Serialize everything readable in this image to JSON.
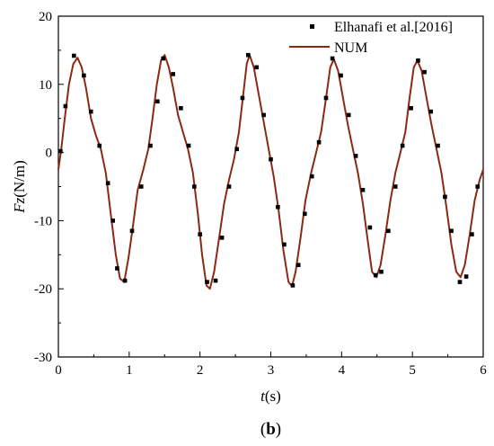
{
  "chart_data": {
    "type": "line",
    "xlabel": {
      "italic": "t",
      "rest": "(s)"
    },
    "ylabel": {
      "italic": "Fz",
      "rest": "(N/m)"
    },
    "xlim": [
      0,
      6
    ],
    "ylim": [
      -30,
      20
    ],
    "x_ticks": [
      0,
      1,
      2,
      3,
      4,
      5,
      6
    ],
    "y_ticks": [
      -30,
      -20,
      -10,
      0,
      10,
      20
    ],
    "grid": false,
    "legend": "top-right",
    "panel_label": {
      "open": "(",
      "bold": "b",
      "close": ")"
    },
    "colors": {
      "num": "#8b2a14",
      "experiment": "#000000",
      "axes": "#000000"
    },
    "series": [
      {
        "name": "Elhanafi et al.[2016]",
        "kind": "scatter",
        "points": [
          [
            0.03,
            0.2
          ],
          [
            0.1,
            6.8
          ],
          [
            0.22,
            14.2
          ],
          [
            0.36,
            11.3
          ],
          [
            0.46,
            6.0
          ],
          [
            0.58,
            1.0
          ],
          [
            0.7,
            -4.5
          ],
          [
            0.77,
            -10.0
          ],
          [
            0.83,
            -17.0
          ],
          [
            0.94,
            -18.8
          ],
          [
            1.04,
            -11.5
          ],
          [
            1.17,
            -5.0
          ],
          [
            1.3,
            1.0
          ],
          [
            1.4,
            7.5
          ],
          [
            1.48,
            13.8
          ],
          [
            1.62,
            11.5
          ],
          [
            1.73,
            6.5
          ],
          [
            1.84,
            1.0
          ],
          [
            1.92,
            -5.0
          ],
          [
            2.0,
            -12.0
          ],
          [
            2.1,
            -19.0
          ],
          [
            2.22,
            -18.8
          ],
          [
            2.31,
            -12.5
          ],
          [
            2.41,
            -5.0
          ],
          [
            2.52,
            0.5
          ],
          [
            2.6,
            8.0
          ],
          [
            2.68,
            14.3
          ],
          [
            2.8,
            12.5
          ],
          [
            2.9,
            5.5
          ],
          [
            3.0,
            -1.0
          ],
          [
            3.1,
            -8.0
          ],
          [
            3.19,
            -13.5
          ],
          [
            3.31,
            -19.5
          ],
          [
            3.39,
            -16.5
          ],
          [
            3.48,
            -9.0
          ],
          [
            3.58,
            -3.5
          ],
          [
            3.68,
            1.5
          ],
          [
            3.78,
            8.0
          ],
          [
            3.87,
            13.8
          ],
          [
            3.99,
            11.3
          ],
          [
            4.1,
            5.5
          ],
          [
            4.2,
            -0.5
          ],
          [
            4.3,
            -5.5
          ],
          [
            4.4,
            -11.0
          ],
          [
            4.48,
            -18.0
          ],
          [
            4.56,
            -17.5
          ],
          [
            4.66,
            -11.5
          ],
          [
            4.76,
            -5.0
          ],
          [
            4.86,
            1.0
          ],
          [
            4.98,
            6.5
          ],
          [
            5.08,
            13.5
          ],
          [
            5.17,
            11.8
          ],
          [
            5.26,
            6.0
          ],
          [
            5.36,
            1.0
          ],
          [
            5.46,
            -6.5
          ],
          [
            5.55,
            -11.5
          ],
          [
            5.67,
            -19.0
          ],
          [
            5.76,
            -18.2
          ],
          [
            5.84,
            -12.0
          ],
          [
            5.92,
            -5.0
          ]
        ]
      },
      {
        "name": "NUM",
        "kind": "line",
        "points": [
          [
            0.0,
            -2.5
          ],
          [
            0.04,
            0.5
          ],
          [
            0.09,
            5.0
          ],
          [
            0.15,
            10.0
          ],
          [
            0.21,
            13.0
          ],
          [
            0.27,
            13.9
          ],
          [
            0.33,
            12.5
          ],
          [
            0.39,
            9.5
          ],
          [
            0.46,
            5.0
          ],
          [
            0.53,
            2.5
          ],
          [
            0.6,
            0.5
          ],
          [
            0.67,
            -3.0
          ],
          [
            0.74,
            -9.0
          ],
          [
            0.81,
            -15.0
          ],
          [
            0.87,
            -18.5
          ],
          [
            0.93,
            -19.0
          ],
          [
            0.99,
            -15.5
          ],
          [
            1.05,
            -11.0
          ],
          [
            1.12,
            -5.5
          ],
          [
            1.2,
            -2.5
          ],
          [
            1.27,
            0.5
          ],
          [
            1.33,
            5.0
          ],
          [
            1.39,
            10.0
          ],
          [
            1.45,
            13.5
          ],
          [
            1.5,
            14.3
          ],
          [
            1.56,
            12.5
          ],
          [
            1.62,
            9.5
          ],
          [
            1.69,
            5.5
          ],
          [
            1.76,
            3.0
          ],
          [
            1.83,
            0.5
          ],
          [
            1.9,
            -3.0
          ],
          [
            1.97,
            -9.0
          ],
          [
            2.03,
            -15.0
          ],
          [
            2.09,
            -19.5
          ],
          [
            2.14,
            -20.0
          ],
          [
            2.2,
            -17.5
          ],
          [
            2.27,
            -12.5
          ],
          [
            2.34,
            -7.5
          ],
          [
            2.41,
            -4.0
          ],
          [
            2.48,
            -1.0
          ],
          [
            2.55,
            3.0
          ],
          [
            2.61,
            8.5
          ],
          [
            2.66,
            13.0
          ],
          [
            2.7,
            14.3
          ],
          [
            2.76,
            12.5
          ],
          [
            2.83,
            8.5
          ],
          [
            2.9,
            4.5
          ],
          [
            2.97,
            0.5
          ],
          [
            3.04,
            -3.5
          ],
          [
            3.11,
            -8.5
          ],
          [
            3.18,
            -14.5
          ],
          [
            3.25,
            -19.0
          ],
          [
            3.3,
            -19.6
          ],
          [
            3.35,
            -17.5
          ],
          [
            3.42,
            -12.5
          ],
          [
            3.49,
            -7.0
          ],
          [
            3.57,
            -3.0
          ],
          [
            3.64,
            0.0
          ],
          [
            3.71,
            3.0
          ],
          [
            3.78,
            8.0
          ],
          [
            3.84,
            12.5
          ],
          [
            3.89,
            13.7
          ],
          [
            3.95,
            12.0
          ],
          [
            4.02,
            8.0
          ],
          [
            4.09,
            4.0
          ],
          [
            4.16,
            0.5
          ],
          [
            4.23,
            -3.0
          ],
          [
            4.3,
            -7.5
          ],
          [
            4.37,
            -13.0
          ],
          [
            4.43,
            -17.5
          ],
          [
            4.49,
            -18.3
          ],
          [
            4.55,
            -16.5
          ],
          [
            4.62,
            -12.0
          ],
          [
            4.69,
            -7.0
          ],
          [
            4.76,
            -3.0
          ],
          [
            4.83,
            0.0
          ],
          [
            4.9,
            3.0
          ],
          [
            4.96,
            8.0
          ],
          [
            5.02,
            12.5
          ],
          [
            5.07,
            13.5
          ],
          [
            5.13,
            12.0
          ],
          [
            5.2,
            8.0
          ],
          [
            5.27,
            4.0
          ],
          [
            5.34,
            0.5
          ],
          [
            5.41,
            -3.0
          ],
          [
            5.48,
            -8.0
          ],
          [
            5.55,
            -13.5
          ],
          [
            5.62,
            -17.5
          ],
          [
            5.68,
            -18.3
          ],
          [
            5.74,
            -16.5
          ],
          [
            5.81,
            -12.0
          ],
          [
            5.88,
            -7.0
          ],
          [
            5.95,
            -4.0
          ],
          [
            6.0,
            -2.5
          ]
        ]
      }
    ]
  }
}
